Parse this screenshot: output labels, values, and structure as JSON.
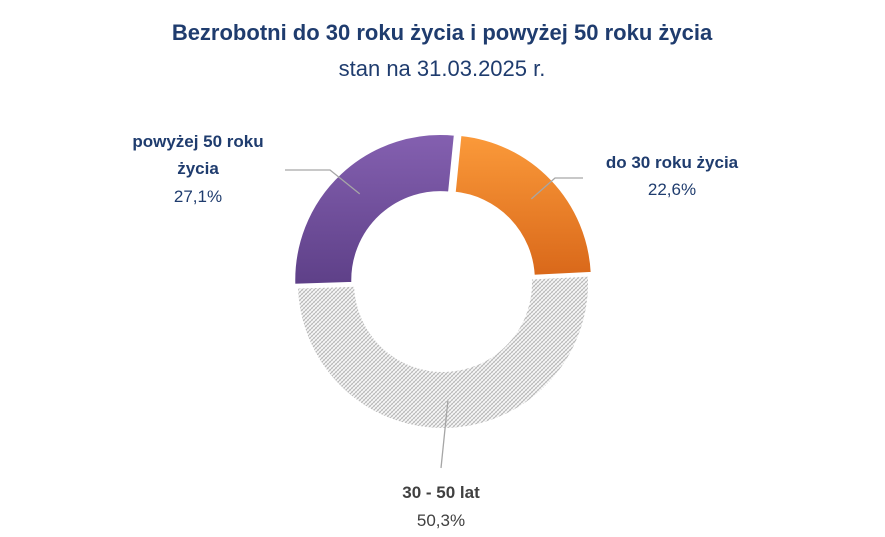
{
  "chart_data": {
    "type": "pie",
    "variant": "doughnut",
    "title": "Bezrobotni do 30 roku życia i powyżej 50 roku życia",
    "subtitle": "stan na 31.03.2025 r.",
    "slices": [
      {
        "key": "do30",
        "label_lines": [
          "do 30 roku życia"
        ],
        "value": 22.6,
        "value_label": "22,6%",
        "color": "#f07c1a",
        "fill": "gradient"
      },
      {
        "key": "30_50",
        "label_lines": [
          "30 - 50 lat"
        ],
        "value": 50.3,
        "value_label": "50,3%",
        "color": "#b0b0b0",
        "fill": "hatch"
      },
      {
        "key": "pow50",
        "label_lines": [
          "powyżej 50 roku",
          "życia"
        ],
        "value": 27.1,
        "value_label": "27,1%",
        "color": "#7552a0",
        "fill": "gradient"
      }
    ],
    "legend": "none",
    "data_labels": "outside with leader lines"
  },
  "colors": {
    "title": "#1f3c6e",
    "label": "#1f3c6e",
    "leader_line": "#a6a6a6"
  }
}
